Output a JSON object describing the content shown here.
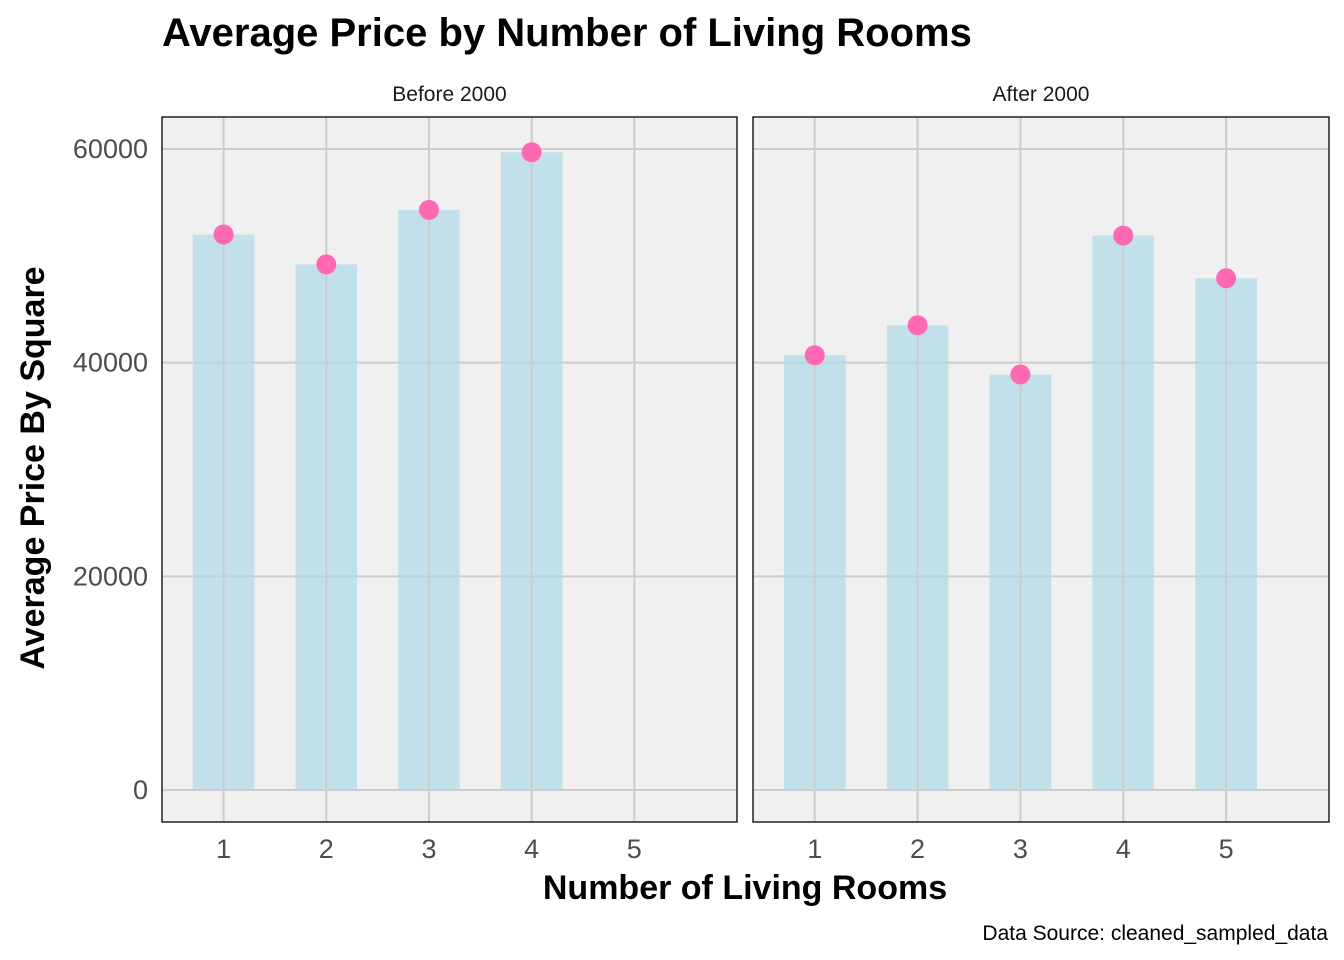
{
  "chart_data": {
    "type": "bar",
    "title": "Average Price by Number of Living Rooms",
    "xlabel": "Number of Living Rooms",
    "ylabel": "Average Price By Square",
    "caption": "Data Source: cleaned_sampled_data",
    "categories": [
      "1",
      "2",
      "3",
      "4",
      "5"
    ],
    "yticks": [
      "0",
      "20000",
      "40000",
      "60000"
    ],
    "ylim": [
      -3000,
      63000
    ],
    "grid": true,
    "facets": [
      {
        "name": "Before 2000",
        "values": [
          52000,
          49200,
          54300,
          59700,
          null
        ]
      },
      {
        "name": "After 2000",
        "values": [
          40700,
          43500,
          38900,
          51900,
          47900
        ]
      }
    ],
    "colors": {
      "bar": "#add8e6",
      "point": "#ff69b4",
      "panel": "#f0f0f0",
      "grid": "#cccccc"
    }
  }
}
